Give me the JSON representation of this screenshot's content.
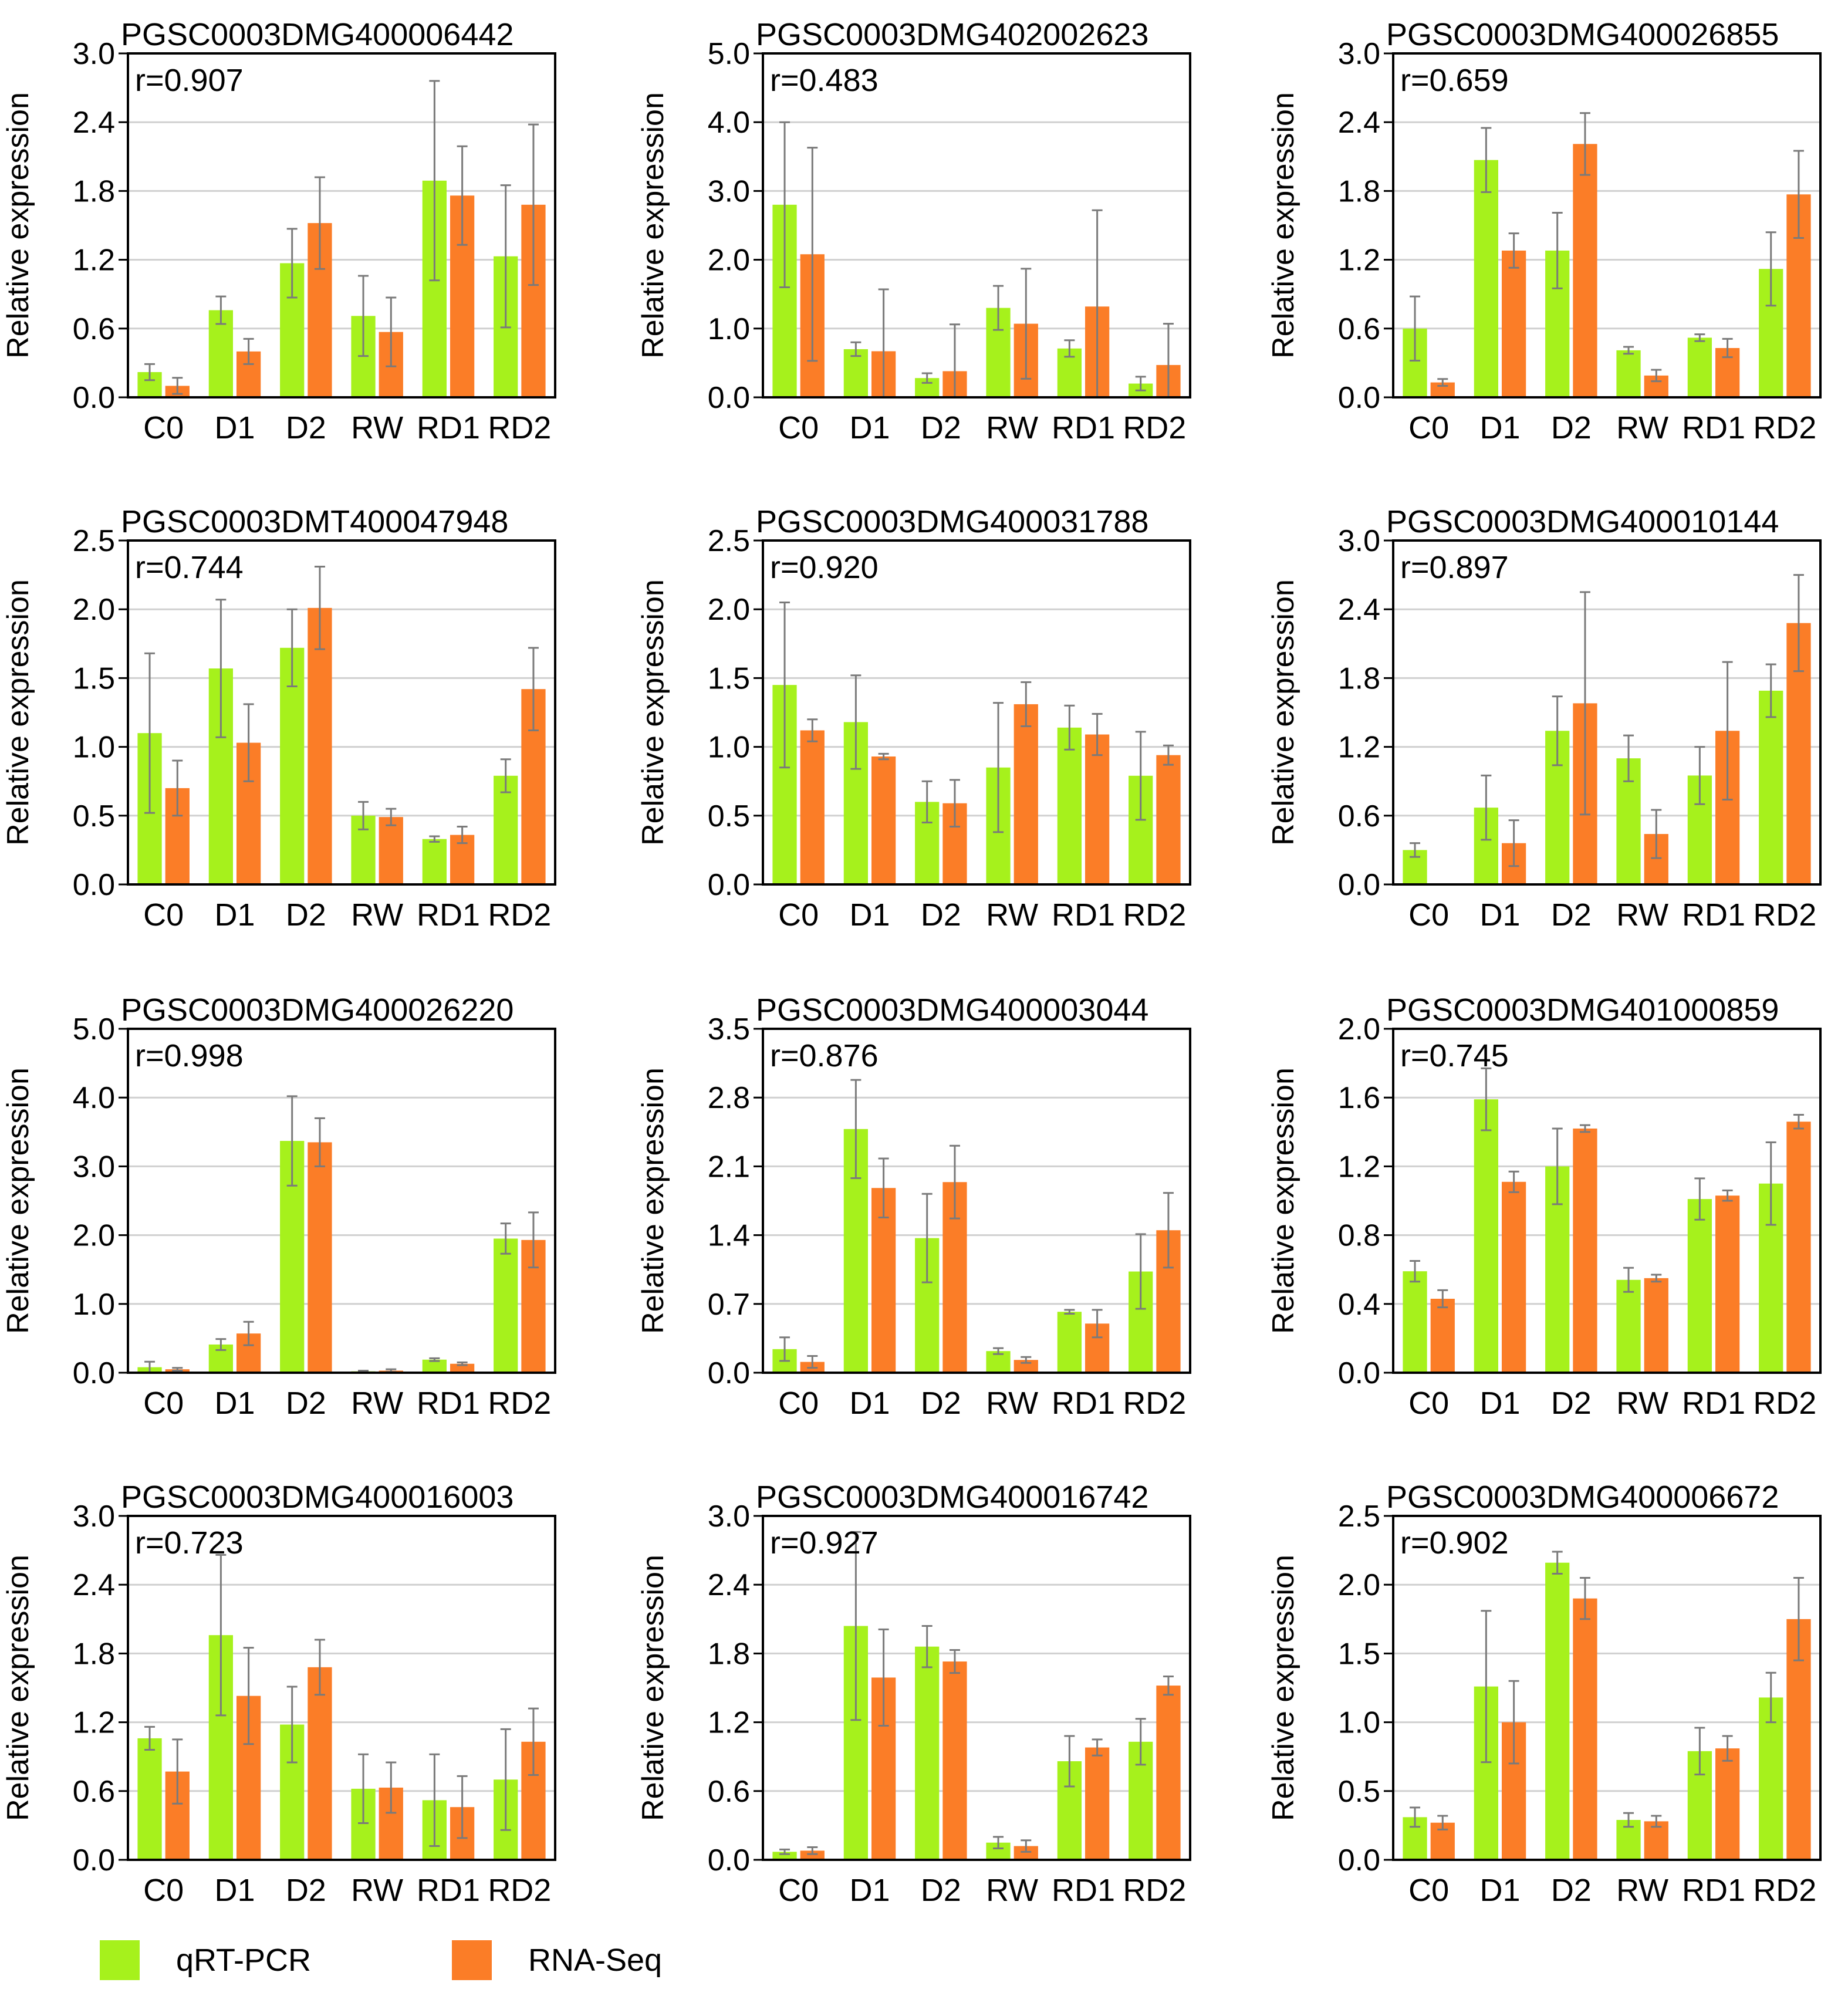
{
  "legend": {
    "qrt": "qRT-PCR",
    "rna": "RNA-Seq"
  },
  "colors": {
    "qrt": "#a6f11c",
    "rna": "#fb7d27",
    "grid": "#d0d0d0",
    "axis": "#000000",
    "error": "#7a7a7a"
  },
  "ylabel": "Relative expression",
  "categories": [
    "C0",
    "D1",
    "D2",
    "RW",
    "RD1",
    "RD2"
  ],
  "chart_data": [
    {
      "type": "bar",
      "title": "PGSC0003DMG400006442",
      "annotation": "r=0.907",
      "ylabel": "Relative expression",
      "ylim": [
        0,
        3.0
      ],
      "yticks": [
        "0.0",
        "0.6",
        "1.2",
        "1.8",
        "2.4",
        "3.0"
      ],
      "categories": [
        "C0",
        "D1",
        "D2",
        "RW",
        "RD1",
        "RD2"
      ],
      "series": [
        {
          "name": "qRT-PCR",
          "values": [
            0.22,
            0.76,
            1.17,
            0.71,
            1.89,
            1.23
          ],
          "errors": [
            0.07,
            0.12,
            0.3,
            0.35,
            0.87,
            0.62
          ]
        },
        {
          "name": "RNA-Seq",
          "values": [
            0.1,
            0.4,
            1.52,
            0.57,
            1.76,
            1.68
          ],
          "errors": [
            0.07,
            0.11,
            0.4,
            0.3,
            0.43,
            0.7
          ]
        }
      ]
    },
    {
      "type": "bar",
      "title": "PGSC0003DMG402002623",
      "annotation": "r=0.483",
      "ylabel": "Relative expression",
      "ylim": [
        0,
        5.0
      ],
      "yticks": [
        "0.0",
        "1.0",
        "2.0",
        "3.0",
        "4.0",
        "5.0"
      ],
      "categories": [
        "C0",
        "D1",
        "D2",
        "RW",
        "RD1",
        "RD2"
      ],
      "series": [
        {
          "name": "qRT-PCR",
          "values": [
            2.8,
            0.7,
            0.28,
            1.3,
            0.71,
            0.2
          ],
          "errors": [
            1.2,
            0.1,
            0.07,
            0.32,
            0.12,
            0.1
          ]
        },
        {
          "name": "RNA-Seq",
          "values": [
            2.08,
            0.67,
            0.38,
            1.07,
            1.32,
            0.47
          ],
          "errors": [
            1.55,
            0.9,
            0.68,
            0.8,
            1.4,
            0.6
          ]
        }
      ]
    },
    {
      "type": "bar",
      "title": "PGSC0003DMG400026855",
      "annotation": "r=0.659",
      "ylabel": "Relative expression",
      "ylim": [
        0,
        3.0
      ],
      "yticks": [
        "0.0",
        "0.6",
        "1.2",
        "1.8",
        "2.4",
        "3.0"
      ],
      "categories": [
        "C0",
        "D1",
        "D2",
        "RW",
        "RD1",
        "RD2"
      ],
      "series": [
        {
          "name": "qRT-PCR",
          "values": [
            0.6,
            2.07,
            1.28,
            0.41,
            0.52,
            1.12
          ],
          "errors": [
            0.28,
            0.28,
            0.33,
            0.03,
            0.03,
            0.32
          ]
        },
        {
          "name": "RNA-Seq",
          "values": [
            0.13,
            1.28,
            2.21,
            0.19,
            0.43,
            1.77
          ],
          "errors": [
            0.03,
            0.15,
            0.27,
            0.05,
            0.08,
            0.38
          ]
        }
      ]
    },
    {
      "type": "bar",
      "title": "PGSC0003DMT400047948",
      "annotation": "r=0.744",
      "ylabel": "Relative expression",
      "ylim": [
        0,
        2.5
      ],
      "yticks": [
        "0.0",
        "0.5",
        "1.0",
        "1.5",
        "2.0",
        "2.5"
      ],
      "categories": [
        "C0",
        "D1",
        "D2",
        "RW",
        "RD1",
        "RD2"
      ],
      "series": [
        {
          "name": "qRT-PCR",
          "values": [
            1.1,
            1.57,
            1.72,
            0.5,
            0.33,
            0.79
          ],
          "errors": [
            0.58,
            0.5,
            0.28,
            0.1,
            0.02,
            0.12
          ]
        },
        {
          "name": "RNA-Seq",
          "values": [
            0.7,
            1.03,
            2.01,
            0.49,
            0.36,
            1.42
          ],
          "errors": [
            0.2,
            0.28,
            0.3,
            0.06,
            0.06,
            0.3
          ]
        }
      ]
    },
    {
      "type": "bar",
      "title": "PGSC0003DMG400031788",
      "annotation": "r=0.920",
      "ylabel": "Relative expression",
      "ylim": [
        0,
        2.5
      ],
      "yticks": [
        "0.0",
        "0.5",
        "1.0",
        "1.5",
        "2.0",
        "2.5"
      ],
      "categories": [
        "C0",
        "D1",
        "D2",
        "RW",
        "RD1",
        "RD2"
      ],
      "series": [
        {
          "name": "qRT-PCR",
          "values": [
            1.45,
            1.18,
            0.6,
            0.85,
            1.14,
            0.79
          ],
          "errors": [
            0.6,
            0.34,
            0.15,
            0.47,
            0.16,
            0.32
          ]
        },
        {
          "name": "RNA-Seq",
          "values": [
            1.12,
            0.93,
            0.59,
            1.31,
            1.09,
            0.94
          ],
          "errors": [
            0.08,
            0.02,
            0.17,
            0.16,
            0.15,
            0.07
          ]
        }
      ]
    },
    {
      "type": "bar",
      "title": "PGSC0003DMG400010144",
      "annotation": "r=0.897",
      "ylabel": "Relative expression",
      "ylim": [
        0,
        3.0
      ],
      "yticks": [
        "0.0",
        "0.6",
        "1.2",
        "1.8",
        "2.4",
        "3.0"
      ],
      "categories": [
        "C0",
        "D1",
        "D2",
        "RW",
        "RD1",
        "RD2"
      ],
      "series": [
        {
          "name": "qRT-PCR",
          "values": [
            0.3,
            0.67,
            1.34,
            1.1,
            0.95,
            1.69
          ],
          "errors": [
            0.06,
            0.28,
            0.3,
            0.2,
            0.25,
            0.23
          ]
        },
        {
          "name": "RNA-Seq",
          "values": [
            0.0,
            0.36,
            1.58,
            0.44,
            1.34,
            2.28
          ],
          "errors": [
            0.0,
            0.2,
            0.97,
            0.21,
            0.6,
            0.42
          ]
        }
      ]
    },
    {
      "type": "bar",
      "title": "PGSC0003DMG400026220",
      "annotation": "r=0.998",
      "ylabel": "Relative expression",
      "ylim": [
        0,
        5.0
      ],
      "yticks": [
        "0.0",
        "1.0",
        "2.0",
        "3.0",
        "4.0",
        "5.0"
      ],
      "categories": [
        "C0",
        "D1",
        "D2",
        "RW",
        "RD1",
        "RD2"
      ],
      "series": [
        {
          "name": "qRT-PCR",
          "values": [
            0.08,
            0.41,
            3.37,
            0.02,
            0.19,
            1.95
          ],
          "errors": [
            0.08,
            0.08,
            0.65,
            0.01,
            0.02,
            0.22
          ]
        },
        {
          "name": "RNA-Seq",
          "values": [
            0.05,
            0.57,
            3.35,
            0.03,
            0.13,
            1.93
          ],
          "errors": [
            0.02,
            0.17,
            0.35,
            0.02,
            0.02,
            0.4
          ]
        }
      ]
    },
    {
      "type": "bar",
      "title": "PGSC0003DMG400003044",
      "annotation": "r=0.876",
      "ylabel": "Relative expression",
      "ylim": [
        0,
        3.5
      ],
      "yticks": [
        "0.0",
        "0.7",
        "1.4",
        "2.1",
        "2.8",
        "3.5"
      ],
      "categories": [
        "C0",
        "D1",
        "D2",
        "RW",
        "RD1",
        "RD2"
      ],
      "series": [
        {
          "name": "qRT-PCR",
          "values": [
            0.24,
            2.48,
            1.37,
            0.22,
            0.62,
            1.03
          ],
          "errors": [
            0.12,
            0.5,
            0.45,
            0.03,
            0.02,
            0.38
          ]
        },
        {
          "name": "RNA-Seq",
          "values": [
            0.11,
            1.88,
            1.94,
            0.13,
            0.5,
            1.45
          ],
          "errors": [
            0.06,
            0.3,
            0.37,
            0.03,
            0.14,
            0.38
          ]
        }
      ]
    },
    {
      "type": "bar",
      "title": "PGSC0003DMG401000859",
      "annotation": "r=0.745",
      "ylabel": "Relative expression",
      "ylim": [
        0,
        2.0
      ],
      "yticks": [
        "0.0",
        "0.4",
        "0.8",
        "1.2",
        "1.6",
        "2.0"
      ],
      "categories": [
        "C0",
        "D1",
        "D2",
        "RW",
        "RD1",
        "RD2"
      ],
      "series": [
        {
          "name": "qRT-PCR",
          "values": [
            0.59,
            1.59,
            1.2,
            0.54,
            1.01,
            1.1
          ],
          "errors": [
            0.06,
            0.18,
            0.22,
            0.07,
            0.12,
            0.24
          ]
        },
        {
          "name": "RNA-Seq",
          "values": [
            0.43,
            1.11,
            1.42,
            0.55,
            1.03,
            1.46
          ],
          "errors": [
            0.05,
            0.06,
            0.02,
            0.02,
            0.03,
            0.04
          ]
        }
      ]
    },
    {
      "type": "bar",
      "title": "PGSC0003DMG400016003",
      "annotation": "r=0.723",
      "ylabel": "Relative expression",
      "ylim": [
        0,
        3.0
      ],
      "yticks": [
        "0.0",
        "0.6",
        "1.2",
        "1.8",
        "2.4",
        "3.0"
      ],
      "categories": [
        "C0",
        "D1",
        "D2",
        "RW",
        "RD1",
        "RD2"
      ],
      "series": [
        {
          "name": "qRT-PCR",
          "values": [
            1.06,
            1.96,
            1.18,
            0.62,
            0.52,
            0.7
          ],
          "errors": [
            0.1,
            0.7,
            0.33,
            0.3,
            0.4,
            0.44
          ]
        },
        {
          "name": "RNA-Seq",
          "values": [
            0.77,
            1.43,
            1.68,
            0.63,
            0.46,
            1.03
          ],
          "errors": [
            0.28,
            0.42,
            0.24,
            0.22,
            0.27,
            0.29
          ]
        }
      ]
    },
    {
      "type": "bar",
      "title": "PGSC0003DMG400016742",
      "annotation": "r=0.927",
      "ylabel": "Relative expression",
      "ylim": [
        0,
        3.0
      ],
      "yticks": [
        "0.0",
        "0.6",
        "1.2",
        "1.8",
        "2.4",
        "3.0"
      ],
      "categories": [
        "C0",
        "D1",
        "D2",
        "RW",
        "RD1",
        "RD2"
      ],
      "series": [
        {
          "name": "qRT-PCR",
          "values": [
            0.07,
            2.04,
            1.86,
            0.15,
            0.86,
            1.03
          ],
          "errors": [
            0.02,
            0.82,
            0.18,
            0.05,
            0.22,
            0.2
          ]
        },
        {
          "name": "RNA-Seq",
          "values": [
            0.08,
            1.59,
            1.73,
            0.12,
            0.98,
            1.52
          ],
          "errors": [
            0.03,
            0.42,
            0.1,
            0.05,
            0.07,
            0.08
          ]
        }
      ]
    },
    {
      "type": "bar",
      "title": "PGSC0003DMG400006672",
      "annotation": "r=0.902",
      "ylabel": "Relative expression",
      "ylim": [
        0,
        2.5
      ],
      "yticks": [
        "0.0",
        "0.5",
        "1.0",
        "1.5",
        "2.0",
        "2.5"
      ],
      "categories": [
        "C0",
        "D1",
        "D2",
        "RW",
        "RD1",
        "RD2"
      ],
      "series": [
        {
          "name": "qRT-PCR",
          "values": [
            0.31,
            1.26,
            2.16,
            0.29,
            0.79,
            1.18
          ],
          "errors": [
            0.07,
            0.55,
            0.08,
            0.05,
            0.17,
            0.18
          ]
        },
        {
          "name": "RNA-Seq",
          "values": [
            0.27,
            1.0,
            1.9,
            0.28,
            0.81,
            1.75
          ],
          "errors": [
            0.05,
            0.3,
            0.15,
            0.04,
            0.09,
            0.3
          ]
        }
      ]
    }
  ]
}
